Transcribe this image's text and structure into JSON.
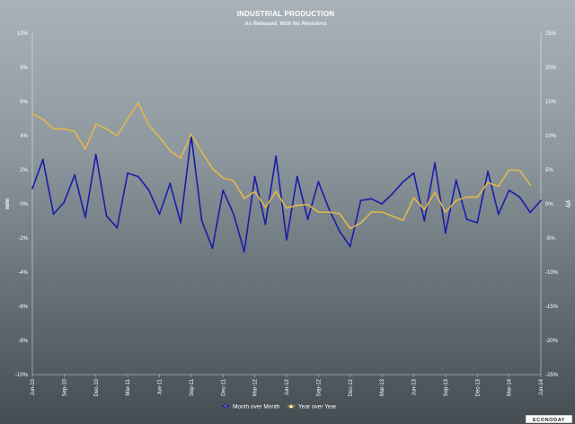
{
  "chart_data": {
    "type": "line",
    "title": "INDUSTRIAL PRODUCTION",
    "subtitle": "As Released, With No Revisions",
    "y_left_label": "m/m",
    "y_right_label": "y/y",
    "y_left_range": [
      -10,
      10
    ],
    "y_right_range": [
      -25,
      25
    ],
    "y_left_ticks": [
      "10%",
      "8%",
      "6%",
      "4%",
      "2%",
      "0%",
      "-2%",
      "-4%",
      "-6%",
      "-8%",
      "-10%"
    ],
    "y_right_ticks": [
      "25%",
      "20%",
      "15%",
      "10%",
      "5%",
      "0%",
      "-5%",
      "-10%",
      "-15%",
      "-20%",
      "-25%"
    ],
    "x_tick_labels": [
      "Jun-10",
      "Sep-10",
      "Dec-10",
      "Mar-11",
      "Jun-11",
      "Sep-11",
      "Dec-11",
      "Mar-12",
      "Jun-12",
      "Sep-12",
      "Dec-12",
      "Mar-13",
      "Jun-13",
      "Sep-13",
      "Dec-13",
      "Mar-14",
      "Jun-14"
    ],
    "grid": false,
    "legend_position": "bottom",
    "series": [
      {
        "name": "Month over Month",
        "axis": "left",
        "color": "#1c1ca8",
        "marker": "circle",
        "values": [
          0.9,
          2.6,
          -0.6,
          0.1,
          1.7,
          -0.8,
          2.9,
          -0.7,
          -1.4,
          1.8,
          1.6,
          0.8,
          -0.6,
          1.2,
          -1.1,
          4.0,
          -1.0,
          -2.6,
          0.8,
          -0.6,
          -2.8,
          1.6,
          -1.2,
          2.8,
          -2.1,
          1.6,
          -0.9,
          1.3,
          -0.3,
          -1.6,
          -2.5,
          0.2,
          0.3,
          0.0,
          0.6,
          1.3,
          1.8,
          -1.0,
          2.4,
          -1.7,
          1.4,
          -0.9,
          -1.1,
          1.9,
          -0.6,
          0.8,
          0.4,
          -0.5,
          0.2
        ]
      },
      {
        "name": "Year over Year",
        "axis": "right",
        "color": "#e3b84a",
        "marker": "triangle",
        "values": [
          13.2,
          12.4,
          11.0,
          11.0,
          10.6,
          8.0,
          11.7,
          11.0,
          10.0,
          12.5,
          14.8,
          11.5,
          9.8,
          7.8,
          6.7,
          10.2,
          7.6,
          5.2,
          3.8,
          3.4,
          0.8,
          1.8,
          -0.5,
          1.8,
          -0.6,
          -0.2,
          -0.1,
          -1.2,
          -1.2,
          -1.4,
          -3.6,
          -2.8,
          -1.2,
          -1.2,
          -1.8,
          -2.4,
          0.9,
          -0.8,
          1.7,
          -1.2,
          0.5,
          1.0,
          1.0,
          3.1,
          2.6,
          5.0,
          4.9,
          2.8
        ]
      }
    ]
  },
  "watermark": "ECONODAY"
}
